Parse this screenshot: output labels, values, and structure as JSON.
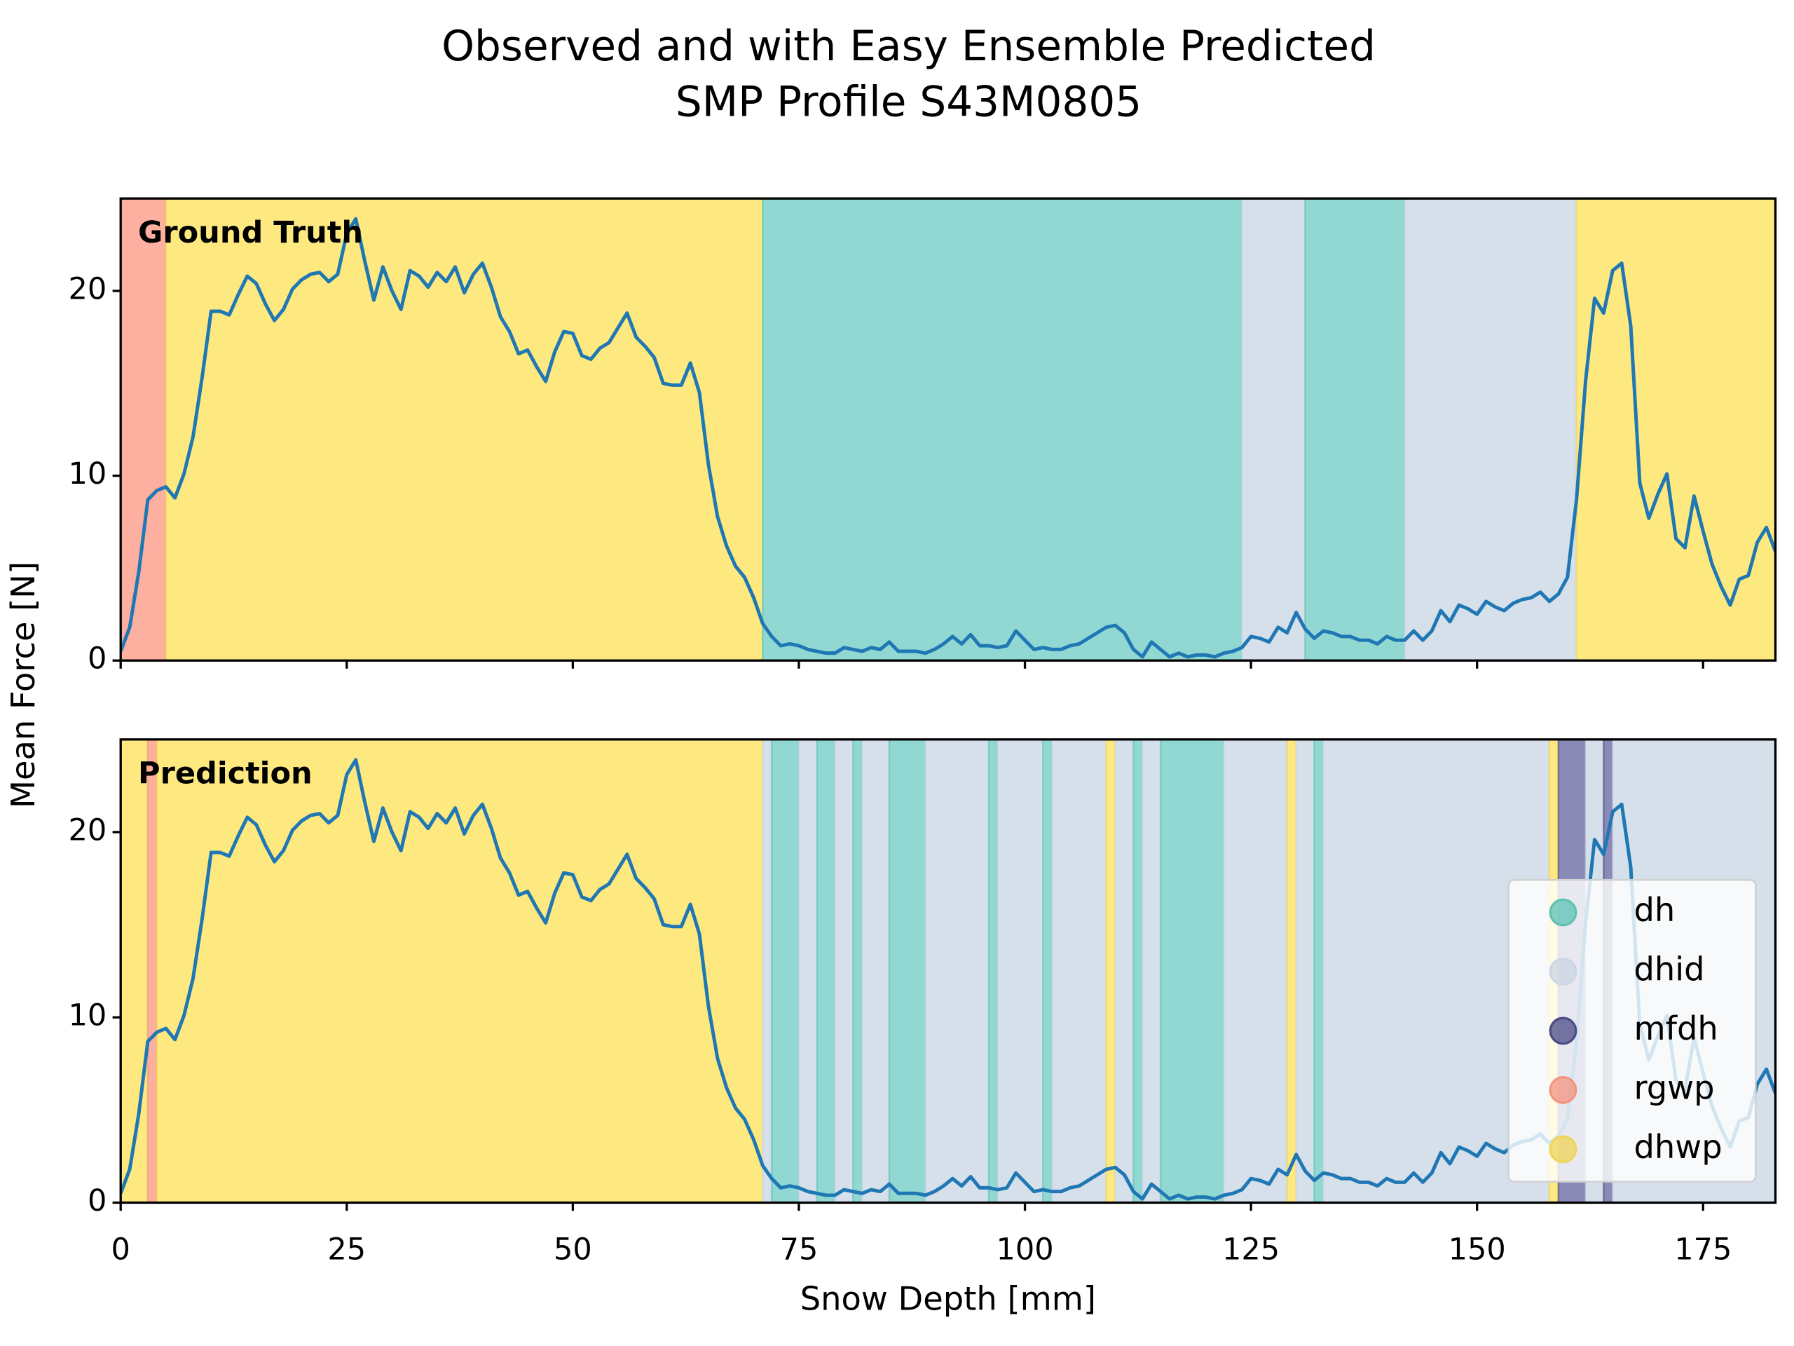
{
  "chart_data": [
    {
      "type": "line",
      "title": "Observed and with Easy Ensemble Predicted",
      "subtitle": "SMP Profile S43M0805",
      "ylabel": "Mean Force [N]",
      "annotation": "Ground Truth",
      "xlim": [
        0,
        183
      ],
      "ylim": [
        0,
        25
      ],
      "xticks": [
        0,
        25,
        50,
        75,
        100,
        125,
        150,
        175
      ],
      "yticks": [
        0,
        10,
        20
      ],
      "x": [
        0,
        1,
        2,
        3,
        4,
        5,
        6,
        7,
        8,
        9,
        10,
        11,
        12,
        13,
        14,
        15,
        16,
        17,
        18,
        19,
        20,
        21,
        22,
        23,
        24,
        25,
        26,
        27,
        28,
        29,
        30,
        31,
        32,
        33,
        34,
        35,
        36,
        37,
        38,
        39,
        40,
        41,
        42,
        43,
        44,
        45,
        46,
        47,
        48,
        49,
        50,
        51,
        52,
        53,
        54,
        55,
        56,
        57,
        58,
        59,
        60,
        61,
        62,
        63,
        64,
        65,
        66,
        67,
        68,
        69,
        70,
        71,
        72,
        73,
        74,
        75,
        76,
        77,
        78,
        79,
        80,
        81,
        82,
        83,
        84,
        85,
        86,
        87,
        88,
        89,
        90,
        91,
        92,
        93,
        94,
        95,
        96,
        97,
        98,
        99,
        100,
        101,
        102,
        103,
        104,
        105,
        106,
        107,
        108,
        109,
        110,
        111,
        112,
        113,
        114,
        115,
        116,
        117,
        118,
        119,
        120,
        121,
        122,
        123,
        124,
        125,
        126,
        127,
        128,
        129,
        130,
        131,
        132,
        133,
        134,
        135,
        136,
        137,
        138,
        139,
        140,
        141,
        142,
        143,
        144,
        145,
        146,
        147,
        148,
        149,
        150,
        151,
        152,
        153,
        154,
        155,
        156,
        157,
        158,
        159,
        160,
        161,
        162,
        163,
        164,
        165,
        166,
        167,
        168,
        169,
        170,
        171,
        172,
        173,
        174,
        175,
        176,
        177,
        178,
        179,
        180,
        181,
        182,
        183
      ],
      "series": [
        {
          "color": "#1f77b4",
          "values": [
            0.5,
            1.8,
            4.8,
            8.7,
            9.2,
            9.4,
            8.8,
            10.1,
            12.1,
            15.3,
            18.9,
            18.9,
            18.7,
            19.8,
            20.8,
            20.4,
            19.3,
            18.4,
            19.0,
            20.1,
            20.6,
            20.9,
            21.0,
            20.5,
            20.9,
            23.1,
            23.9,
            21.6,
            19.5,
            21.3,
            20.0,
            19.0,
            21.1,
            20.8,
            20.2,
            21.0,
            20.5,
            21.3,
            19.9,
            20.9,
            21.5,
            20.2,
            18.6,
            17.8,
            16.6,
            16.8,
            15.9,
            15.1,
            16.7,
            17.8,
            17.7,
            16.5,
            16.3,
            16.9,
            17.2,
            18.0,
            18.8,
            17.5,
            17.0,
            16.4,
            15.0,
            14.9,
            14.9,
            16.1,
            14.5,
            10.6,
            7.8,
            6.2,
            5.1,
            4.5,
            3.4,
            2.0,
            1.3,
            0.8,
            0.9,
            0.8,
            0.6,
            0.5,
            0.4,
            0.4,
            0.7,
            0.6,
            0.5,
            0.7,
            0.6,
            1.0,
            0.5,
            0.5,
            0.5,
            0.4,
            0.6,
            0.9,
            1.3,
            0.9,
            1.4,
            0.8,
            0.8,
            0.7,
            0.8,
            1.6,
            1.1,
            0.6,
            0.7,
            0.6,
            0.6,
            0.8,
            0.9,
            1.2,
            1.5,
            1.8,
            1.9,
            1.5,
            0.6,
            0.2,
            1.0,
            0.6,
            0.2,
            0.4,
            0.2,
            0.3,
            0.3,
            0.2,
            0.4,
            0.5,
            0.7,
            1.3,
            1.2,
            1.0,
            1.8,
            1.5,
            2.6,
            1.7,
            1.2,
            1.6,
            1.5,
            1.3,
            1.3,
            1.1,
            1.1,
            0.9,
            1.3,
            1.1,
            1.1,
            1.6,
            1.1,
            1.6,
            2.7,
            2.1,
            3.0,
            2.8,
            2.5,
            3.2,
            2.9,
            2.7,
            3.1,
            3.3,
            3.4,
            3.7,
            3.2,
            3.6,
            4.5,
            8.7,
            15.1,
            19.6,
            18.8,
            21.1,
            21.5,
            18.1,
            9.6,
            7.7,
            9.0,
            10.1,
            6.6,
            6.1,
            8.9,
            7.0,
            5.2,
            4.0,
            3.0,
            4.4,
            4.6,
            6.4,
            7.2,
            5.9
          ]
        }
      ],
      "segments": [
        {
          "class": "rgwp",
          "start": 0,
          "end": 5
        },
        {
          "class": "dhwp",
          "start": 5,
          "end": 71
        },
        {
          "class": "dh",
          "start": 71,
          "end": 124
        },
        {
          "class": "dhid",
          "start": 124,
          "end": 131
        },
        {
          "class": "dh",
          "start": 131,
          "end": 142
        },
        {
          "class": "dhid",
          "start": 142,
          "end": 161
        },
        {
          "class": "dhwp",
          "start": 161,
          "end": 183
        }
      ]
    },
    {
      "type": "line",
      "xlabel": "Snow Depth [mm]",
      "annotation": "Prediction",
      "xlim": [
        0,
        183
      ],
      "ylim": [
        0,
        25
      ],
      "xticks": [
        0,
        25,
        50,
        75,
        100,
        125,
        150,
        175
      ],
      "yticks": [
        0,
        10,
        20
      ],
      "legend": "lower right",
      "x": [
        0,
        1,
        2,
        3,
        4,
        5,
        6,
        7,
        8,
        9,
        10,
        11,
        12,
        13,
        14,
        15,
        16,
        17,
        18,
        19,
        20,
        21,
        22,
        23,
        24,
        25,
        26,
        27,
        28,
        29,
        30,
        31,
        32,
        33,
        34,
        35,
        36,
        37,
        38,
        39,
        40,
        41,
        42,
        43,
        44,
        45,
        46,
        47,
        48,
        49,
        50,
        51,
        52,
        53,
        54,
        55,
        56,
        57,
        58,
        59,
        60,
        61,
        62,
        63,
        64,
        65,
        66,
        67,
        68,
        69,
        70,
        71,
        72,
        73,
        74,
        75,
        76,
        77,
        78,
        79,
        80,
        81,
        82,
        83,
        84,
        85,
        86,
        87,
        88,
        89,
        90,
        91,
        92,
        93,
        94,
        95,
        96,
        97,
        98,
        99,
        100,
        101,
        102,
        103,
        104,
        105,
        106,
        107,
        108,
        109,
        110,
        111,
        112,
        113,
        114,
        115,
        116,
        117,
        118,
        119,
        120,
        121,
        122,
        123,
        124,
        125,
        126,
        127,
        128,
        129,
        130,
        131,
        132,
        133,
        134,
        135,
        136,
        137,
        138,
        139,
        140,
        141,
        142,
        143,
        144,
        145,
        146,
        147,
        148,
        149,
        150,
        151,
        152,
        153,
        154,
        155,
        156,
        157,
        158,
        159,
        160,
        161,
        162,
        163,
        164,
        165,
        166,
        167,
        168,
        169,
        170,
        171,
        172,
        173,
        174,
        175,
        176,
        177,
        178,
        179,
        180,
        181,
        182,
        183
      ],
      "series": [
        {
          "color": "#1f77b4",
          "values": [
            0.5,
            1.8,
            4.8,
            8.7,
            9.2,
            9.4,
            8.8,
            10.1,
            12.1,
            15.3,
            18.9,
            18.9,
            18.7,
            19.8,
            20.8,
            20.4,
            19.3,
            18.4,
            19.0,
            20.1,
            20.6,
            20.9,
            21.0,
            20.5,
            20.9,
            23.1,
            23.9,
            21.6,
            19.5,
            21.3,
            20.0,
            19.0,
            21.1,
            20.8,
            20.2,
            21.0,
            20.5,
            21.3,
            19.9,
            20.9,
            21.5,
            20.2,
            18.6,
            17.8,
            16.6,
            16.8,
            15.9,
            15.1,
            16.7,
            17.8,
            17.7,
            16.5,
            16.3,
            16.9,
            17.2,
            18.0,
            18.8,
            17.5,
            17.0,
            16.4,
            15.0,
            14.9,
            14.9,
            16.1,
            14.5,
            10.6,
            7.8,
            6.2,
            5.1,
            4.5,
            3.4,
            2.0,
            1.3,
            0.8,
            0.9,
            0.8,
            0.6,
            0.5,
            0.4,
            0.4,
            0.7,
            0.6,
            0.5,
            0.7,
            0.6,
            1.0,
            0.5,
            0.5,
            0.5,
            0.4,
            0.6,
            0.9,
            1.3,
            0.9,
            1.4,
            0.8,
            0.8,
            0.7,
            0.8,
            1.6,
            1.1,
            0.6,
            0.7,
            0.6,
            0.6,
            0.8,
            0.9,
            1.2,
            1.5,
            1.8,
            1.9,
            1.5,
            0.6,
            0.2,
            1.0,
            0.6,
            0.2,
            0.4,
            0.2,
            0.3,
            0.3,
            0.2,
            0.4,
            0.5,
            0.7,
            1.3,
            1.2,
            1.0,
            1.8,
            1.5,
            2.6,
            1.7,
            1.2,
            1.6,
            1.5,
            1.3,
            1.3,
            1.1,
            1.1,
            0.9,
            1.3,
            1.1,
            1.1,
            1.6,
            1.1,
            1.6,
            2.7,
            2.1,
            3.0,
            2.8,
            2.5,
            3.2,
            2.9,
            2.7,
            3.1,
            3.3,
            3.4,
            3.7,
            3.2,
            3.6,
            4.5,
            8.7,
            15.1,
            19.6,
            18.8,
            21.1,
            21.5,
            18.1,
            9.6,
            7.7,
            9.0,
            10.1,
            6.6,
            6.1,
            8.9,
            7.0,
            5.2,
            4.0,
            3.0,
            4.4,
            4.6,
            6.4,
            7.2,
            5.9
          ]
        }
      ],
      "classes": [
        {
          "name": "dh",
          "color": "#5ec2b4",
          "fill": "#91d8d3"
        },
        {
          "name": "dhid",
          "color": "#cbd6e6",
          "fill": "#d6e0eb"
        },
        {
          "name": "mfdh",
          "color": "#4b4c86",
          "fill": "#8a8ab6"
        },
        {
          "name": "rgwp",
          "color": "#f39480",
          "fill": "#fdb0a0"
        },
        {
          "name": "dhwp",
          "color": "#f0d45a",
          "fill": "#fde97f"
        }
      ],
      "segments": [
        {
          "class": "dhwp",
          "start": 0,
          "end": 3
        },
        {
          "class": "rgwp",
          "start": 3,
          "end": 4
        },
        {
          "class": "dhwp",
          "start": 4,
          "end": 71
        },
        {
          "class": "dhid",
          "start": 71,
          "end": 72
        },
        {
          "class": "dh",
          "start": 72,
          "end": 75
        },
        {
          "class": "dhid",
          "start": 75,
          "end": 77
        },
        {
          "class": "dh",
          "start": 77,
          "end": 79
        },
        {
          "class": "dhid",
          "start": 79,
          "end": 81
        },
        {
          "class": "dh",
          "start": 81,
          "end": 82
        },
        {
          "class": "dhid",
          "start": 82,
          "end": 85
        },
        {
          "class": "dh",
          "start": 85,
          "end": 89
        },
        {
          "class": "dhid",
          "start": 89,
          "end": 96
        },
        {
          "class": "dh",
          "start": 96,
          "end": 97
        },
        {
          "class": "dhid",
          "start": 97,
          "end": 102
        },
        {
          "class": "dh",
          "start": 102,
          "end": 103
        },
        {
          "class": "dhid",
          "start": 103,
          "end": 109
        },
        {
          "class": "dhwp",
          "start": 109,
          "end": 110
        },
        {
          "class": "dhid",
          "start": 110,
          "end": 112
        },
        {
          "class": "dh",
          "start": 112,
          "end": 113
        },
        {
          "class": "dhid",
          "start": 113,
          "end": 115
        },
        {
          "class": "dh",
          "start": 115,
          "end": 122
        },
        {
          "class": "dhid",
          "start": 122,
          "end": 129
        },
        {
          "class": "dhwp",
          "start": 129,
          "end": 130
        },
        {
          "class": "dhid",
          "start": 130,
          "end": 132
        },
        {
          "class": "dh",
          "start": 132,
          "end": 133
        },
        {
          "class": "dhid",
          "start": 133,
          "end": 158
        },
        {
          "class": "dhwp",
          "start": 158,
          "end": 159
        },
        {
          "class": "mfdh",
          "start": 159,
          "end": 162
        },
        {
          "class": "dhid",
          "start": 162,
          "end": 164
        },
        {
          "class": "mfdh",
          "start": 164,
          "end": 165
        },
        {
          "class": "dhid",
          "start": 165,
          "end": 183
        }
      ]
    }
  ]
}
